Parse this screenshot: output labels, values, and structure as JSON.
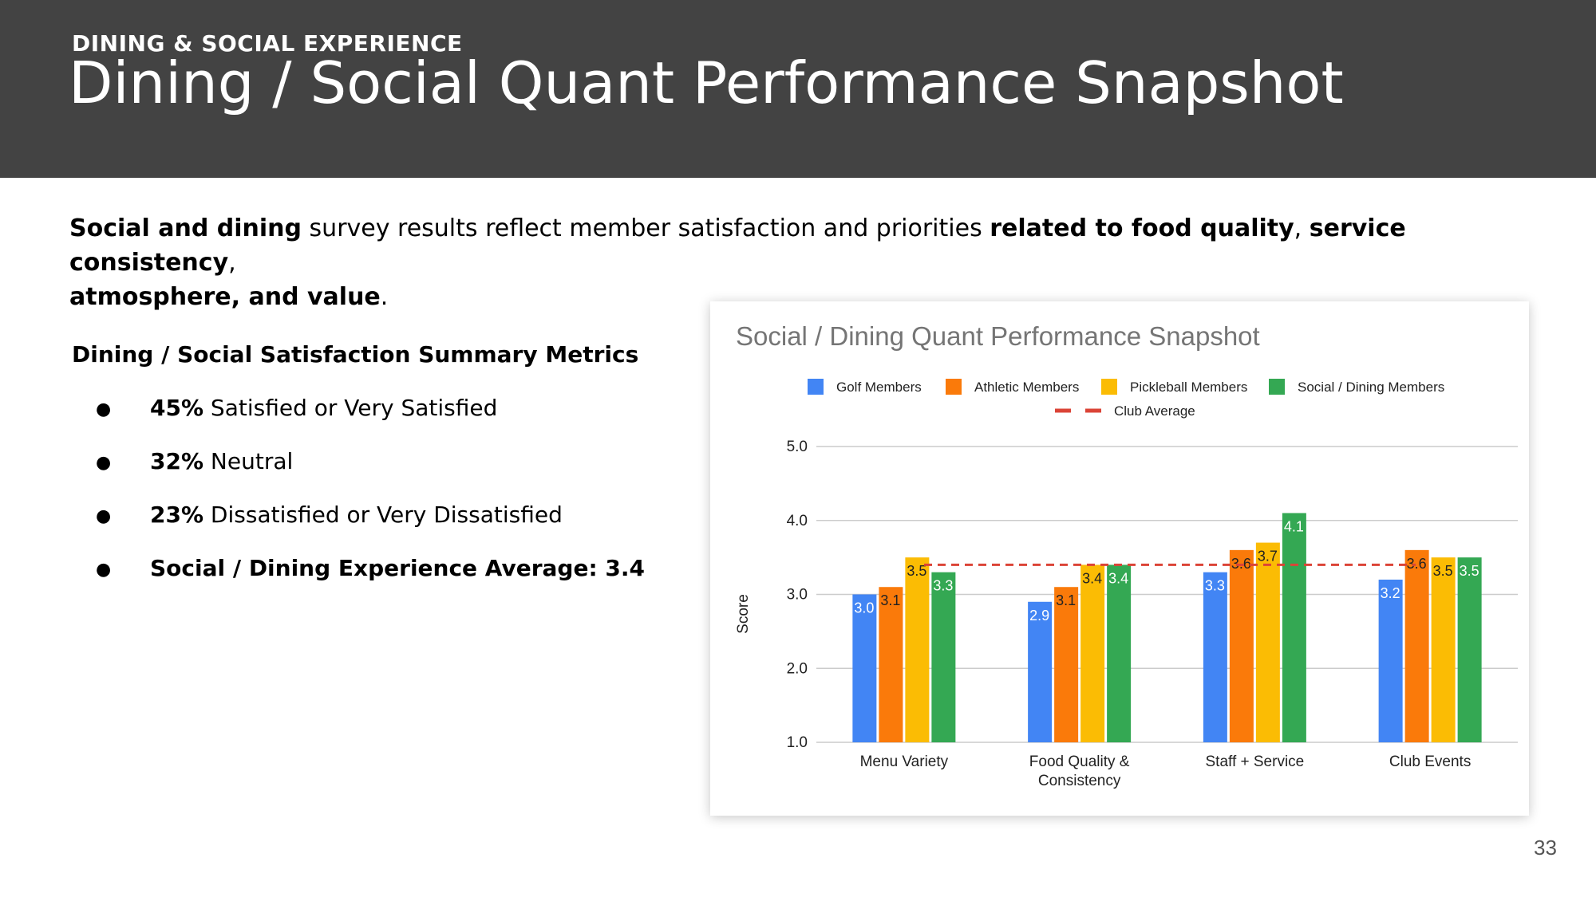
{
  "header": {
    "eyebrow": "DINING & SOCIAL EXPERIENCE",
    "title": "Dining / Social Quant Performance Snapshot"
  },
  "intro": {
    "part1_bold": "Social and dining",
    "part2": " survey results reflect member satisfaction and priorities ",
    "part3_bold": "related to food quality",
    "part4": ", ",
    "part5_bold": "service consistency",
    "part6": ", ",
    "part7_bold": "atmosphere, and value",
    "part8": "."
  },
  "summary": {
    "title": "Dining / Social Satisfaction Summary Metrics",
    "bullet": "●",
    "items": [
      {
        "bold": "45%",
        "text": " Satisfied or Very Satisfied"
      },
      {
        "bold": "32%",
        "text": " Neutral"
      },
      {
        "bold": "23%",
        "text": " Dissatisfied or Very Dissatisfied"
      },
      {
        "bold": "Social / Dining Experience Average: 3.4",
        "text": ""
      }
    ]
  },
  "page_number": "33",
  "chart_data": {
    "type": "bar",
    "title": "Social / Dining Quant Performance Snapshot",
    "xlabel": "",
    "ylabel": "Score",
    "ylim": [
      1.0,
      5.0
    ],
    "yticks": [
      "1.0",
      "2.0",
      "3.0",
      "4.0",
      "5.0"
    ],
    "grid": true,
    "legend_position": "top",
    "categories": [
      [
        "Menu Variety"
      ],
      [
        "Food Quality &",
        "Consistency"
      ],
      [
        "Staff + Service"
      ],
      [
        "Club Events"
      ]
    ],
    "series": [
      {
        "name": "Golf Members",
        "color": "#4285f4",
        "label_color": "#ffffff",
        "values": [
          3.0,
          2.9,
          3.3,
          3.2
        ],
        "labels": [
          "3.0",
          "2.9",
          "3.3",
          "3.2"
        ]
      },
      {
        "name": "Athletic Members",
        "color": "#fa7a0a",
        "label_color": "#222222",
        "values": [
          3.1,
          3.1,
          3.6,
          3.6
        ],
        "labels": [
          "3.1",
          "3.1",
          "3.6",
          "3.6"
        ]
      },
      {
        "name": "Pickleball Members",
        "color": "#fbbc04",
        "label_color": "#222222",
        "values": [
          3.5,
          3.4,
          3.7,
          3.5
        ],
        "labels": [
          "3.5",
          "3.4",
          "3.7",
          "3.5"
        ]
      },
      {
        "name": "Social / Dining Members",
        "color": "#34a853",
        "label_color": "#ffffff",
        "values": [
          3.3,
          3.4,
          4.1,
          3.5
        ],
        "labels": [
          "3.3",
          "3.4",
          "4.1",
          "3.5"
        ]
      }
    ],
    "reference_line": {
      "name": "Club Average",
      "value": 3.4,
      "color": "#db4437"
    }
  }
}
